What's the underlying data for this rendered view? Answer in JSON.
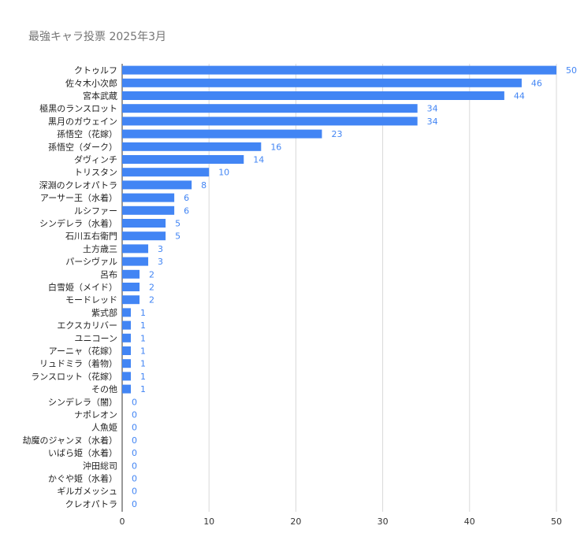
{
  "chart_data": {
    "type": "bar",
    "orientation": "horizontal",
    "title": "最強キャラ投票 2025年3月",
    "xlabel": "",
    "ylabel": "",
    "xlim": [
      0,
      50
    ],
    "xticks": [
      0,
      10,
      20,
      30,
      40,
      50
    ],
    "grid": true,
    "legend": "none",
    "bar_color": "#4285f4",
    "label_color": "#4285f4",
    "categories": [
      "クトゥルフ",
      "佐々木小次郎",
      "宮本武蔵",
      "極黒のランスロット",
      "黒月のガウェイン",
      "孫悟空（花嫁）",
      "孫悟空（ダーク）",
      "ダヴィンチ",
      "トリスタン",
      "深淵のクレオパトラ",
      "アーサー王（水着）",
      "ルシファー",
      "シンデレラ（水着）",
      "石川五右衛門",
      "土方歳三",
      "パーシヴァル",
      "呂布",
      "白雪姫（メイド）",
      "モードレッド",
      "紫式部",
      "エクスカリバー",
      "ユニコーン",
      "アーニャ（花嫁）",
      "リュドミラ（着物）",
      "ランスロット（花嫁）",
      "その他",
      "シンデレラ（闇）",
      "ナポレオン",
      "人魚姫",
      "劫魔のジャンヌ（水着）",
      "いばら姫（水着）",
      "沖田総司",
      "かぐや姫（水着）",
      "ギルガメッシュ",
      "クレオパトラ"
    ],
    "values": [
      50,
      46,
      44,
      34,
      34,
      23,
      16,
      14,
      10,
      8,
      6,
      6,
      5,
      5,
      3,
      3,
      2,
      2,
      2,
      1,
      1,
      1,
      1,
      1,
      1,
      1,
      0,
      0,
      0,
      0,
      0,
      0,
      0,
      0,
      0
    ]
  }
}
